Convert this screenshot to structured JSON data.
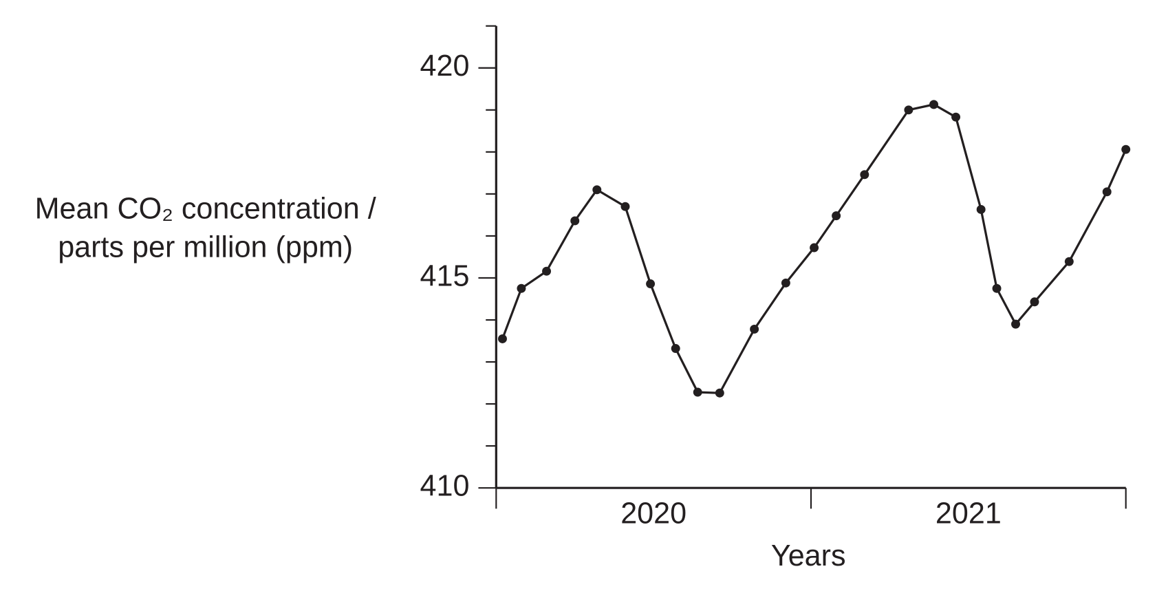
{
  "chart_data": {
    "type": "line",
    "ylabel": [
      "Mean CO₂ concentration /",
      "parts per million (ppm)"
    ],
    "xlabel": "Years",
    "categories": [
      "2020",
      "2021"
    ],
    "x": [
      2020.02,
      2020.08,
      2020.16,
      2020.25,
      2020.32,
      2020.41,
      2020.49,
      2020.57,
      2020.64,
      2020.71,
      2020.82,
      2020.92,
      2021.01,
      2021.08,
      2021.17,
      2021.31,
      2021.39,
      2021.46,
      2021.54,
      2021.59,
      2021.65,
      2021.71,
      2021.82,
      2021.94,
      2022.0
    ],
    "series": [
      {
        "name": "Mean CO2",
        "color": "#231f20",
        "values": [
          413.55,
          414.75,
          415.16,
          416.36,
          417.1,
          416.7,
          414.86,
          413.32,
          412.28,
          412.26,
          413.78,
          414.88,
          415.72,
          416.48,
          417.46,
          419.0,
          419.13,
          418.83,
          416.63,
          414.75,
          413.9,
          414.43,
          415.39,
          417.05,
          418.06
        ]
      }
    ],
    "xlim": [
      2020,
      2022
    ],
    "xticks": [
      2020,
      2021,
      2022
    ],
    "ylim": [
      410,
      421
    ],
    "yticks": [
      410,
      415,
      420
    ],
    "minor_yticks": [
      411,
      412,
      413,
      414,
      416,
      417,
      418,
      419,
      421
    ],
    "grid": false
  }
}
